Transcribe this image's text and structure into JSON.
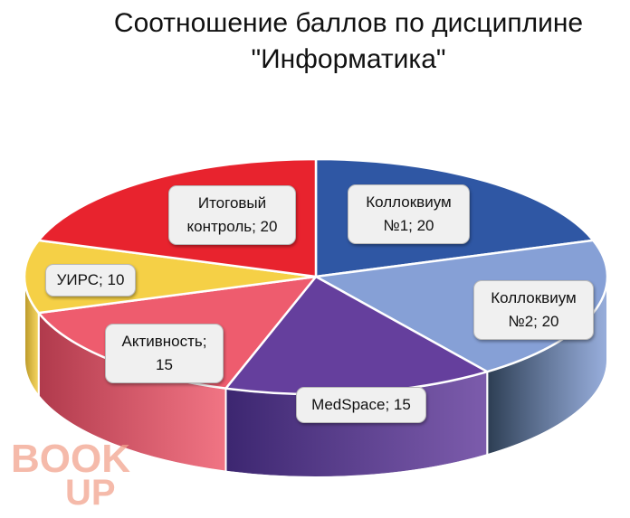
{
  "chart_data": {
    "type": "pie",
    "title_lines": [
      "Соотношение баллов по дисциплине",
      "\"Информатика\""
    ],
    "slices": [
      {
        "name": "Коллоквиум №1",
        "value": 20,
        "label_lines": [
          "Коллоквиум",
          "№1; 20"
        ],
        "color": "#2f57a4",
        "side": "#26417a"
      },
      {
        "name": "Коллоквиум №2",
        "value": 20,
        "label_lines": [
          "Коллоквиум",
          "№2; 20"
        ],
        "color": "#86a0d6",
        "side": "#2c3d52"
      },
      {
        "name": "MedSpace",
        "value": 15,
        "label_lines": [
          "MedSpace; 15"
        ],
        "color": "#653f9d",
        "side": "#3c2670"
      },
      {
        "name": "Активность",
        "value": 15,
        "label_lines": [
          "Активность;",
          "15"
        ],
        "color": "#ee5c6e",
        "side": "#b03a4c"
      },
      {
        "name": "УИРС",
        "value": 10,
        "label_lines": [
          "УИРС; 10"
        ],
        "color": "#f5d046",
        "side": "#b89627"
      },
      {
        "name": "Итоговый контроль",
        "value": 20,
        "label_lines": [
          "Итоговый",
          "контроль; 20"
        ],
        "color": "#e8232e",
        "side": "#a81c24"
      }
    ],
    "legend": "none",
    "data_labels": "category; value"
  },
  "watermark": {
    "line1": "BOOK",
    "line2": "UP"
  }
}
